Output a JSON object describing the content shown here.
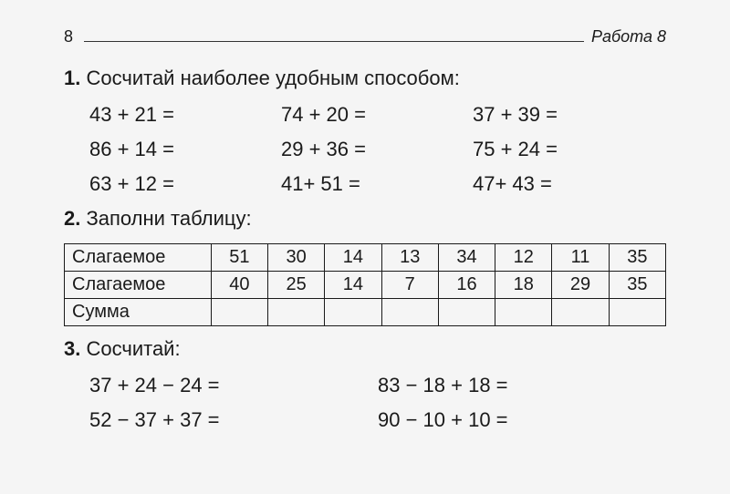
{
  "header": {
    "page_number": "8",
    "title": "Работа 8"
  },
  "task1": {
    "number": "1.",
    "title": "Сосчитай наиболее удобным способом:",
    "rows": [
      [
        "43 + 21 =",
        "74 + 20 =",
        "37 + 39 ="
      ],
      [
        "86 + 14 =",
        "29 + 36 =",
        "75 + 24 ="
      ],
      [
        "63 + 12 =",
        "41+ 51 =",
        "47+ 43 ="
      ]
    ]
  },
  "task2": {
    "number": "2.",
    "title": "Заполни таблицу:",
    "rows": [
      {
        "label": "Слагаемое",
        "cells": [
          "51",
          "30",
          "14",
          "13",
          "34",
          "12",
          "11",
          "35"
        ]
      },
      {
        "label": "Слагаемое",
        "cells": [
          "40",
          "25",
          "14",
          "7",
          "16",
          "18",
          "29",
          "35"
        ]
      },
      {
        "label": "Сумма",
        "cells": [
          "",
          "",
          "",
          "",
          "",
          "",
          "",
          ""
        ]
      }
    ]
  },
  "task3": {
    "number": "3.",
    "title": "Сосчитай:",
    "rows": [
      [
        "37 + 24 − 24 =",
        "83 − 18 + 18 ="
      ],
      [
        "52 − 37 + 37 =",
        "90 − 10 + 10 ="
      ]
    ]
  },
  "style": {
    "background_color": "#f5f5f5",
    "text_color": "#1a1a1a",
    "border_color": "#1a1a1a",
    "title_fontsize": 22,
    "equation_fontsize": 22,
    "table_fontsize": 20,
    "header_fontsize": 18
  }
}
